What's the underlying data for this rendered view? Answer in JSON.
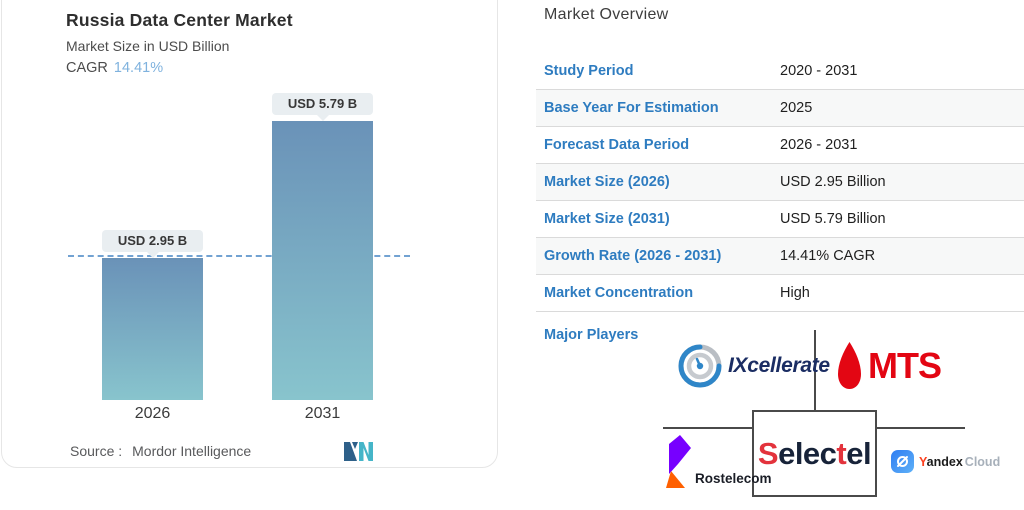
{
  "chart": {
    "title": "Russia Data Center Market",
    "subtitle": "Market Size in USD Billion",
    "cagr_label": "CAGR",
    "cagr_value": "14.41%",
    "bars": [
      {
        "year": "2026",
        "badge": "USD 2.95 B",
        "value": 2.95
      },
      {
        "year": "2031",
        "badge": "USD 5.79 B",
        "value": 5.79
      }
    ],
    "source_label": "Source :",
    "source_value": "Mordor Intelligence"
  },
  "chart_data": {
    "type": "bar",
    "categories": [
      "2026",
      "2031"
    ],
    "values": [
      2.95,
      5.79
    ],
    "title": "Russia Data Center Market",
    "subtitle": "Market Size in USD Billion",
    "cagr": "14.41%",
    "ylabel": "Market Size in USD Billion",
    "ylim": [
      0,
      6
    ],
    "data_labels": [
      "USD 2.95 B",
      "USD 5.79 B"
    ],
    "annotations": [
      "dashed horizontal reference line at 2.95 (2026 level)"
    ],
    "grid": false,
    "legend": "none",
    "source": "Mordor Intelligence",
    "bar_gradient": [
      "#6a92b8",
      "#88c4cd"
    ],
    "reference_line_color": "#72a2d2"
  },
  "overview": {
    "heading": "Market Overview",
    "rows": [
      {
        "label": "Study Period",
        "value": "2020 - 2031"
      },
      {
        "label": "Base Year For Estimation",
        "value": "2025"
      },
      {
        "label": "Forecast Data Period",
        "value": "2026 - 2031"
      },
      {
        "label": "Market Size (2026)",
        "value": "USD 2.95 Billion"
      },
      {
        "label": "Market Size (2031)",
        "value": "USD 5.79 Billion"
      },
      {
        "label": "Growth Rate (2026 - 2031)",
        "value": "14.41% CAGR"
      },
      {
        "label": "Market Concentration",
        "value": "High"
      }
    ],
    "major_players_label": "Major Players",
    "major_players": [
      "IXcellerate",
      "MTS",
      "Rostelecom",
      "Selectel",
      "Yandex Cloud"
    ]
  },
  "logos": {
    "ixcellerate": "IXcellerate",
    "mts": "MTS",
    "rostelecom": "Rostelecom",
    "selectel_parts": [
      "S",
      "elec",
      "t",
      "el"
    ],
    "yandex_parts": [
      "Y",
      "andex",
      "Cloud"
    ]
  },
  "colors": {
    "label_blue": "#2e7cc0",
    "cagr_blue": "#7fb2de",
    "mts_red": "#e30613",
    "selectel_red": "#e3333c",
    "selectel_navy": "#172339",
    "rostelecom_purple": "#7700ff",
    "rostelecom_orange": "#ff6000",
    "yandex_red": "#fc3f1d",
    "connector_gray": "#4a4a4a",
    "divider_gray": "#dadada"
  }
}
